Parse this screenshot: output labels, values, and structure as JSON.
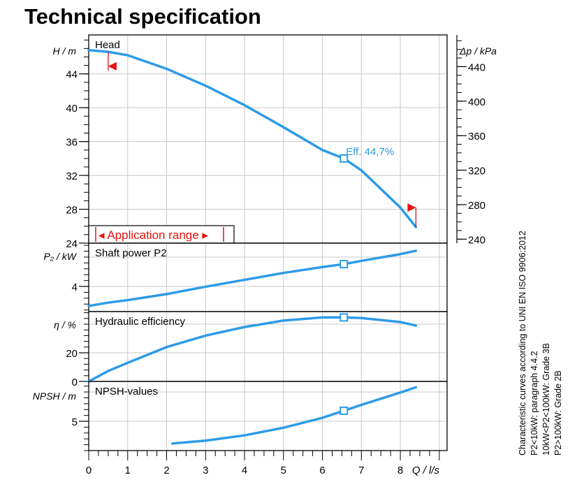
{
  "title": "Technical specification",
  "notes": [
    "Characteristic curves according to UNI EN ISO 9906:2012",
    "P2<10kW:  paragraph 4.4.2",
    "10kW<P2<100kW: Grade 3B",
    "P2>100kW: Grade 2B"
  ],
  "colors": {
    "curve": "#2e9be8",
    "range": "#e81010",
    "grid": "#c8c8c8",
    "axis": "#000000"
  },
  "chart_data": [
    {
      "type": "line",
      "title": "Head",
      "ylabel": "H / m",
      "ylabel_right": "Δp / kPa",
      "xlim": [
        0,
        9.2
      ],
      "ylim": [
        24,
        48.6
      ],
      "yticks": [
        24,
        28,
        32,
        36,
        40,
        44
      ],
      "yticks_right": [
        240,
        280,
        320,
        360,
        400,
        440
      ],
      "x": [
        0,
        0.5,
        1,
        2,
        3,
        4,
        5,
        6,
        6.55,
        7,
        8,
        8.4
      ],
      "y": [
        46.8,
        46.6,
        46.2,
        44.6,
        42.6,
        40.3,
        37.7,
        35.0,
        34.0,
        32.6,
        28.2,
        25.9
      ],
      "operating_point": {
        "x": 6.55,
        "y": 34.0,
        "label": "Eff.  44,7%"
      },
      "application_range": {
        "label": "Application range",
        "from": 0.5,
        "to": 8.4
      }
    },
    {
      "type": "line",
      "title": "Shaft power P2",
      "ylabel": "P₂ / kW",
      "ylim": [
        2.29,
        6.95
      ],
      "yticks": [
        4
      ],
      "gridlines": [
        4,
        6
      ],
      "x": [
        0,
        0.5,
        1,
        2,
        3,
        4,
        5,
        6,
        6.55,
        7,
        8,
        8.4
      ],
      "y": [
        2.67,
        2.9,
        3.07,
        3.48,
        3.98,
        4.45,
        4.92,
        5.32,
        5.52,
        5.74,
        6.2,
        6.43
      ],
      "operating_point": {
        "x": 6.55,
        "y": 5.52
      }
    },
    {
      "type": "line",
      "title": "Hydraulic efficiency",
      "ylabel": "η / %",
      "ylim": [
        0,
        48.8
      ],
      "yticks": [
        0,
        20
      ],
      "gridlines": [
        20,
        40
      ],
      "x": [
        0,
        0.5,
        1,
        2,
        3,
        4,
        5,
        6,
        6.55,
        7,
        8,
        8.4
      ],
      "y": [
        0,
        7.3,
        13,
        24,
        32,
        38,
        42.5,
        44.7,
        44.7,
        44.3,
        41.5,
        39
      ],
      "operating_point": {
        "x": 6.55,
        "y": 44.7
      }
    },
    {
      "type": "line",
      "title": "NPSH-values",
      "ylabel": "NPSH   / m",
      "xlabel": "Q / l/s",
      "ylim": [
        0,
        11.8
      ],
      "yticks": [
        5
      ],
      "gridlines": [
        5,
        10
      ],
      "xticks": [
        0,
        1,
        2,
        3,
        4,
        5,
        6,
        7,
        8
      ],
      "x": [
        2.15,
        3,
        4,
        5,
        6,
        6.55,
        7,
        8,
        8.4
      ],
      "y": [
        1.2,
        1.7,
        2.6,
        3.9,
        5.6,
        6.8,
        7.8,
        9.9,
        10.8
      ],
      "operating_point": {
        "x": 6.55,
        "y": 6.8
      }
    }
  ]
}
